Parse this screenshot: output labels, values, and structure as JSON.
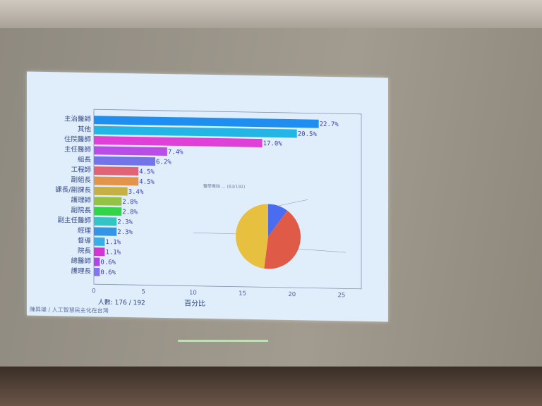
{
  "chart_data": [
    {
      "type": "bar",
      "orientation": "horizontal",
      "categories": [
        "主治醫師",
        "其他",
        "住院醫師",
        "主任醫師",
        "組長",
        "工程師",
        "副組長",
        "課長/副課長",
        "護理師",
        "副院長",
        "副主任醫師",
        "經理",
        "督導",
        "院長",
        "總醫師",
        "護理長"
      ],
      "values": [
        22.7,
        20.5,
        17.0,
        7.4,
        6.2,
        4.5,
        4.5,
        3.4,
        2.8,
        2.8,
        2.3,
        2.3,
        1.1,
        1.1,
        0.6,
        0.6
      ],
      "value_labels": [
        "22.7%",
        "20.5%",
        "17.0%",
        "7.4%",
        "6.2%",
        "4.5%",
        "4.5%",
        "3.4%",
        "2.8%",
        "2.8%",
        "2.3%",
        "2.3%",
        "1.1%",
        "1.1%",
        "0.6%",
        "0.6%"
      ],
      "colors": [
        "#1e8ff0",
        "#22b6e6",
        "#e040d8",
        "#b84ee6",
        "#7474ea",
        "#e26474",
        "#e29448",
        "#c4b044",
        "#94c244",
        "#34d44a",
        "#34c4c4",
        "#3494e6",
        "#34b0e6",
        "#d434d4",
        "#b044e6",
        "#8474f2"
      ],
      "xlabel": "百分比",
      "xticks": [
        "0",
        "5",
        "10",
        "15",
        "20",
        "25"
      ],
      "xlim": [
        0,
        27
      ],
      "note": "人數: 176 / 192",
      "grid": false
    },
    {
      "type": "pie",
      "title": "醫學專院 ... (63/192)",
      "values": [
        10,
        42,
        48
      ],
      "colors": [
        "#4a6cf0",
        "#e05a48",
        "#e8c040"
      ]
    }
  ],
  "footer": {
    "left": "陳昇瑋 / 人工智慧民主化在台灣"
  }
}
